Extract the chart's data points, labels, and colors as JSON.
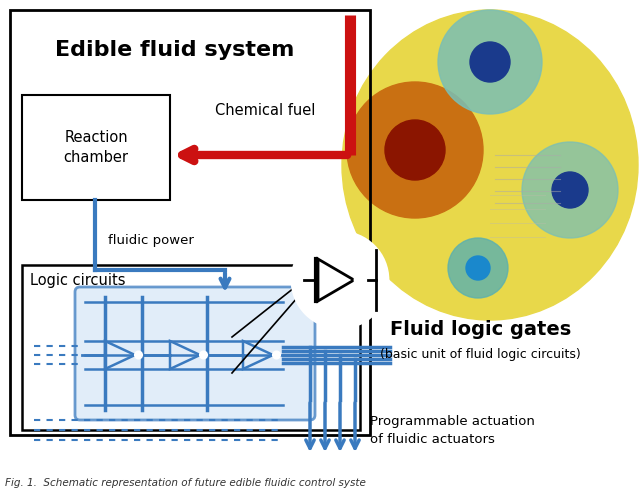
{
  "blue": "#3a7abf",
  "red": "#cc1111",
  "black": "#111111",
  "yellow_bg": "#e8d84a",
  "photo_border": "#555500",
  "fig_w": 6.4,
  "fig_h": 4.9,
  "title_text": "Edible fluid system",
  "chemical_fuel_text": "Chemical fuel",
  "fluidic_power_text": "fluidic power",
  "reaction_chamber_text": "Reaction\nchamber",
  "logic_circuits_text": "Logic circuits",
  "fluid_logic_gates_text": "Fluid logic gates",
  "basic_unit_text": "(basic unit of fluid logic circuits)",
  "programmable_text": "Programmable actuation\nof fluidic actuators",
  "caption_text": "Fig. 1.  Schematic representation of future edible fluidic control syste"
}
